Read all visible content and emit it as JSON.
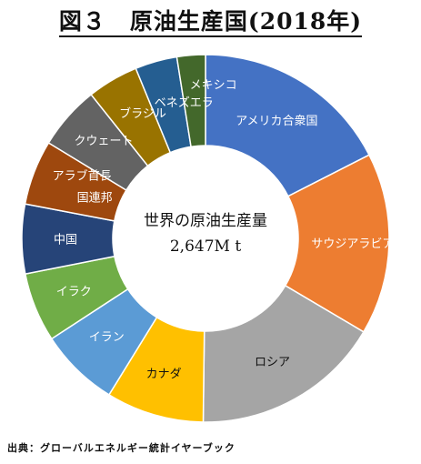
{
  "chart_data": {
    "type": "pie",
    "title": "図３　原油生産国(2018年)",
    "center_label": [
      "世界の原油生産量",
      "2,647M t"
    ],
    "source": "出典：グローバルエネルギー統計イヤーブック",
    "categories": [
      "アメリカ合衆国",
      "サウジアラビア",
      "ロシア",
      "カナダ",
      "イラン",
      "イラク",
      "中国",
      "アラブ首長国連邦",
      "クウェート",
      "ブラジル",
      "ベネズエラ",
      "メキシコ"
    ],
    "values": [
      17.5,
      16.0,
      16.7,
      8.6,
      7.0,
      6.1,
      6.1,
      5.7,
      5.6,
      4.5,
      3.7,
      2.5
    ],
    "colors": [
      "#4472c4",
      "#ed7d31",
      "#a5a5a5",
      "#ffc000",
      "#5b9bd5",
      "#70ad47",
      "#264478",
      "#9e480e",
      "#636363",
      "#997300",
      "#255e91",
      "#43682b"
    ],
    "label_colors": [
      "#ffffff",
      "#ffffff",
      "#111111",
      "#111111",
      "#ffffff",
      "#ffffff",
      "#ffffff",
      "#ffffff",
      "#ffffff",
      "#ffffff",
      "#ffffff",
      "#ffffff"
    ],
    "legend": "none"
  }
}
